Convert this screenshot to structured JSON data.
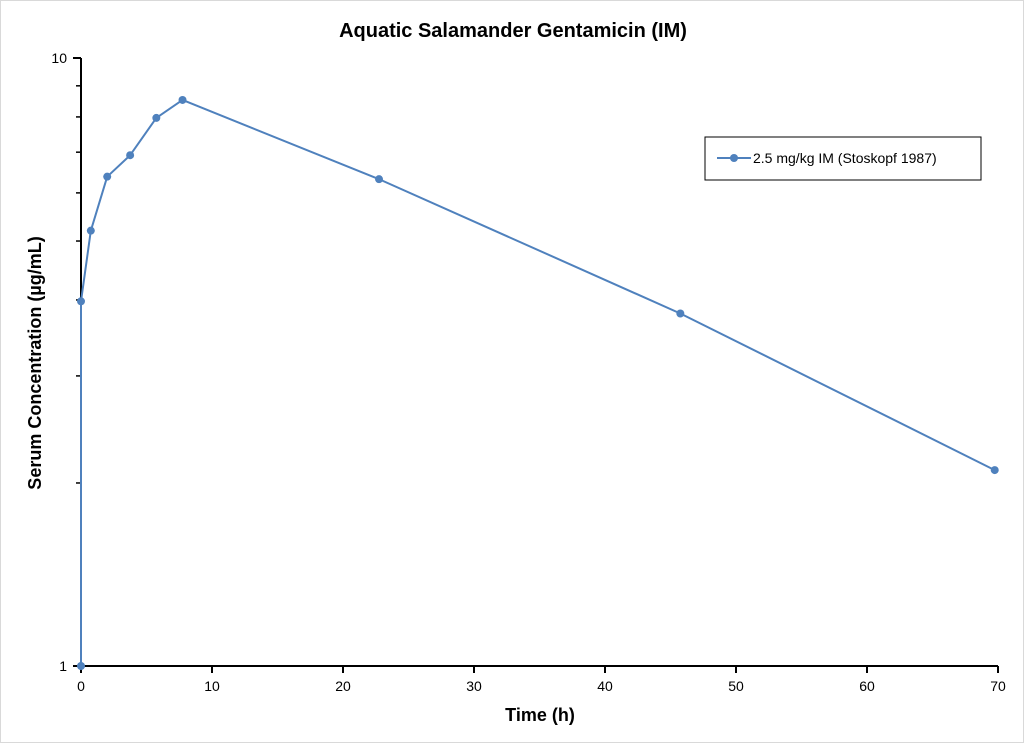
{
  "chart_data": {
    "type": "line",
    "title": "Aquatic Salamander Gentamicin (IM)",
    "xlabel": "Time (h)",
    "ylabel": "Serum Concentration (µg/mL)",
    "xlim": [
      0,
      70
    ],
    "ylim": [
      1,
      10
    ],
    "yscale": "log",
    "xticks": [
      0,
      10,
      20,
      30,
      40,
      50,
      60,
      70
    ],
    "xtick_labels": [
      "0",
      "10",
      "20",
      "30",
      "40",
      "50",
      "60",
      "70"
    ],
    "yticks": [
      1,
      10
    ],
    "ytick_labels": [
      "1",
      "10"
    ],
    "grid": false,
    "legend_position": "top-right",
    "series": [
      {
        "name": "2.5 mg/kg IM (Stoskopf 1987)",
        "color": "#4f81bd",
        "marker": "circle",
        "x": [
          0,
          0,
          0.75,
          2,
          3.75,
          5.75,
          7.75,
          22.75,
          45.75,
          69.75
        ],
        "y": [
          1,
          3.98,
          5.2,
          6.38,
          6.92,
          7.97,
          8.53,
          6.32,
          3.8,
          2.1
        ]
      }
    ]
  }
}
